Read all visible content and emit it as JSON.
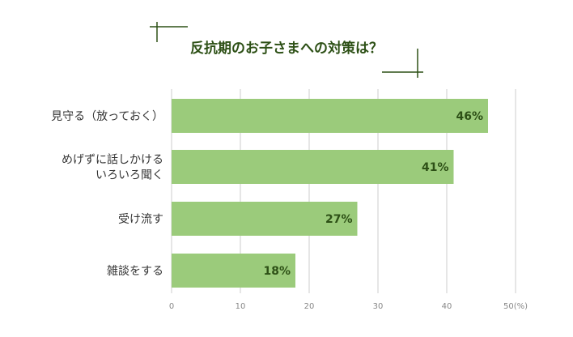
{
  "chart_data": {
    "type": "bar",
    "orientation": "horizontal",
    "title": "反抗期のお子さまへの対策は？",
    "categories": [
      [
        "見守る（放っておく）"
      ],
      [
        "めげずに話しかける",
        "いろいろ聞く"
      ],
      [
        "受け流す"
      ],
      [
        "雑談をする"
      ]
    ],
    "values": [
      46,
      41,
      27,
      18
    ],
    "value_labels": [
      "46%",
      "41%",
      "27%",
      "18%"
    ],
    "xlim": [
      0,
      50
    ],
    "x_ticks": [
      "0",
      "10",
      "20",
      "30",
      "40",
      "50(%)"
    ],
    "grid": true,
    "colors": {
      "bar": "#9bcb7b",
      "grid": "#cccccc",
      "title": "#2d5016",
      "accent_line": "#2d5016"
    }
  }
}
